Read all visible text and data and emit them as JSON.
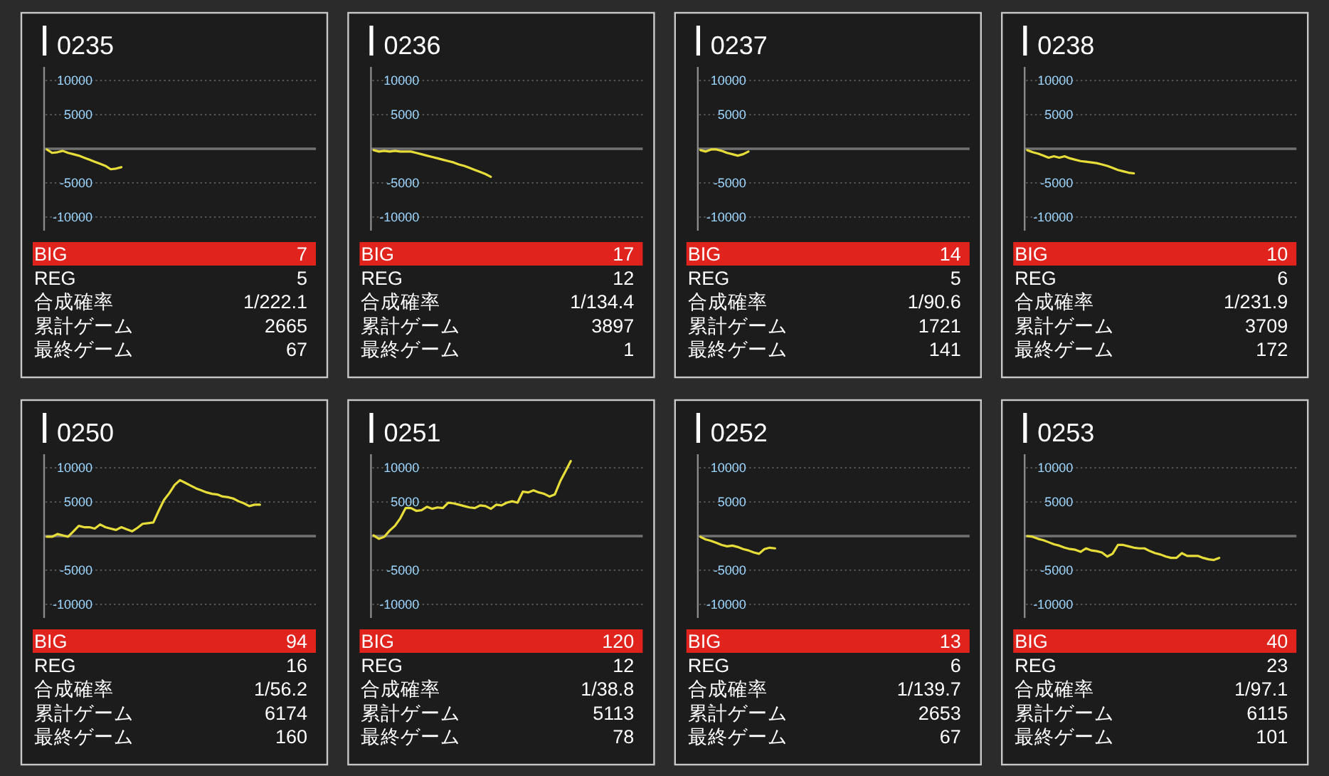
{
  "chart_data": [
    {
      "type": "line",
      "title": "0235",
      "categories": [
        null,
        null,
        null,
        null,
        null,
        null,
        null,
        null,
        null,
        null,
        null,
        null,
        null,
        null,
        null,
        null,
        null,
        null,
        null,
        null,
        null,
        null,
        null,
        null,
        null,
        null,
        null,
        null,
        null,
        null,
        null,
        null,
        null,
        null,
        null,
        null,
        null,
        null,
        null,
        null,
        null,
        null,
        null,
        null,
        null,
        null,
        null,
        null,
        null,
        null,
        null
      ],
      "values": [
        -100,
        -600,
        -500,
        -300,
        -600,
        -800,
        -1000,
        -1300,
        -1600,
        -1900,
        -2200,
        -2500,
        -3000,
        -2900,
        -2700,
        null,
        null,
        null,
        null,
        null,
        null,
        null,
        null,
        null,
        null,
        null,
        null,
        null,
        null,
        null,
        null,
        null,
        null,
        null,
        null,
        null,
        null,
        null,
        null,
        null,
        null,
        null,
        null,
        null,
        null,
        null,
        null,
        null,
        null,
        null,
        null
      ],
      "color": "#e6dc3a",
      "ylim": [
        -12000,
        12000
      ],
      "yticks": [
        -10000,
        -5000,
        5000,
        10000
      ],
      "grid": "y",
      "tick_labels": "y",
      "ref_lines": [
        {
          "axis": "y",
          "value": 0,
          "color": "#727272"
        }
      ],
      "annotations": [
        "BIG",
        "7",
        "REG",
        "5",
        "合成確率",
        "1/222.1",
        "累計ゲーム",
        "2665",
        "最終ゲーム",
        "67"
      ]
    },
    {
      "type": "line",
      "title": "0236",
      "categories": [
        null,
        null,
        null,
        null,
        null,
        null,
        null,
        null,
        null,
        null,
        null,
        null,
        null,
        null,
        null,
        null,
        null,
        null,
        null,
        null,
        null,
        null,
        null,
        null,
        null,
        null,
        null,
        null,
        null,
        null,
        null,
        null,
        null,
        null,
        null,
        null,
        null,
        null,
        null,
        null,
        null,
        null,
        null,
        null,
        null,
        null,
        null,
        null,
        null,
        null,
        null
      ],
      "values": [
        -200,
        -400,
        -300,
        -400,
        -300,
        -400,
        -400,
        -400,
        -600,
        -800,
        -1000,
        -1200,
        -1400,
        -1600,
        -1800,
        -2000,
        -2300,
        -2500,
        -2800,
        -3100,
        -3400,
        -3700,
        -4100,
        null,
        null,
        null,
        null,
        null,
        null,
        null,
        null,
        null,
        null,
        null,
        null,
        null,
        null,
        null,
        null,
        null,
        null,
        null,
        null,
        null,
        null,
        null,
        null,
        null,
        null,
        null,
        null
      ],
      "color": "#e6dc3a",
      "ylim": [
        -12000,
        12000
      ],
      "yticks": [
        -10000,
        -5000,
        5000,
        10000
      ],
      "grid": "y",
      "tick_labels": "y",
      "ref_lines": [
        {
          "axis": "y",
          "value": 0,
          "color": "#727272"
        }
      ],
      "annotations": [
        "BIG",
        "17",
        "REG",
        "12",
        "合成確率",
        "1/134.4",
        "累計ゲーム",
        "3897",
        "最終ゲーム",
        "1"
      ]
    },
    {
      "type": "line",
      "title": "0237",
      "categories": [
        null,
        null,
        null,
        null,
        null,
        null,
        null,
        null,
        null,
        null,
        null,
        null,
        null,
        null,
        null,
        null,
        null,
        null,
        null,
        null,
        null,
        null,
        null,
        null,
        null,
        null,
        null,
        null,
        null,
        null,
        null,
        null,
        null,
        null,
        null,
        null,
        null,
        null,
        null,
        null,
        null,
        null,
        null,
        null,
        null,
        null,
        null,
        null,
        null,
        null,
        null
      ],
      "values": [
        -200,
        -400,
        -100,
        -100,
        -300,
        -600,
        -800,
        -1000,
        -800,
        -400,
        null,
        null,
        null,
        null,
        null,
        null,
        null,
        null,
        null,
        null,
        null,
        null,
        null,
        null,
        null,
        null,
        null,
        null,
        null,
        null,
        null,
        null,
        null,
        null,
        null,
        null,
        null,
        null,
        null,
        null,
        null,
        null,
        null,
        null,
        null,
        null,
        null,
        null,
        null,
        null,
        null
      ],
      "color": "#e6dc3a",
      "ylim": [
        -12000,
        12000
      ],
      "yticks": [
        -10000,
        -5000,
        5000,
        10000
      ],
      "grid": "y",
      "tick_labels": "y",
      "ref_lines": [
        {
          "axis": "y",
          "value": 0,
          "color": "#727272"
        }
      ],
      "annotations": [
        "BIG",
        "14",
        "REG",
        "5",
        "合成確率",
        "1/90.6",
        "累計ゲーム",
        "1721",
        "最終ゲーム",
        "141"
      ]
    },
    {
      "type": "line",
      "title": "0238",
      "categories": [
        null,
        null,
        null,
        null,
        null,
        null,
        null,
        null,
        null,
        null,
        null,
        null,
        null,
        null,
        null,
        null,
        null,
        null,
        null,
        null,
        null,
        null,
        null,
        null,
        null,
        null,
        null,
        null,
        null,
        null,
        null,
        null,
        null,
        null,
        null,
        null,
        null,
        null,
        null,
        null,
        null,
        null,
        null,
        null,
        null,
        null,
        null,
        null,
        null,
        null,
        null
      ],
      "values": [
        -200,
        -500,
        -700,
        -1000,
        -1300,
        -1100,
        -1300,
        -1100,
        -1400,
        -1600,
        -1800,
        -1900,
        -2000,
        -2100,
        -2300,
        -2500,
        -2800,
        -3100,
        -3300,
        -3500,
        -3600,
        null,
        null,
        null,
        null,
        null,
        null,
        null,
        null,
        null,
        null,
        null,
        null,
        null,
        null,
        null,
        null,
        null,
        null,
        null,
        null,
        null,
        null,
        null,
        null,
        null,
        null,
        null,
        null,
        null,
        null
      ],
      "color": "#e6dc3a",
      "ylim": [
        -12000,
        12000
      ],
      "yticks": [
        -10000,
        -5000,
        5000,
        10000
      ],
      "grid": "y",
      "tick_labels": "y",
      "ref_lines": [
        {
          "axis": "y",
          "value": 0,
          "color": "#727272"
        }
      ],
      "annotations": [
        "BIG",
        "10",
        "REG",
        "6",
        "合成確率",
        "1/231.9",
        "累計ゲーム",
        "3709",
        "最終ゲーム",
        "172"
      ]
    },
    {
      "type": "line",
      "title": "0250",
      "categories": [
        null,
        null,
        null,
        null,
        null,
        null,
        null,
        null,
        null,
        null,
        null,
        null,
        null,
        null,
        null,
        null,
        null,
        null,
        null,
        null,
        null,
        null,
        null,
        null,
        null,
        null,
        null,
        null,
        null,
        null,
        null,
        null,
        null,
        null,
        null,
        null,
        null,
        null,
        null,
        null,
        null,
        null,
        null,
        null,
        null,
        null,
        null,
        null,
        null,
        null,
        null
      ],
      "values": [
        -100,
        -100,
        300,
        100,
        -100,
        700,
        1500,
        1300,
        1300,
        1100,
        1700,
        1300,
        1100,
        900,
        1300,
        1000,
        700,
        1200,
        1800,
        1900,
        2000,
        3700,
        5300,
        6300,
        7500,
        8200,
        7800,
        7400,
        7000,
        6700,
        6400,
        6200,
        6100,
        5800,
        5700,
        5500,
        5100,
        4800,
        4400,
        4600,
        4600,
        null,
        null,
        null,
        null,
        null,
        null,
        null,
        null,
        null,
        null
      ],
      "color": "#e6dc3a",
      "ylim": [
        -12000,
        12000
      ],
      "yticks": [
        -10000,
        -5000,
        5000,
        10000
      ],
      "grid": "y",
      "tick_labels": "y",
      "ref_lines": [
        {
          "axis": "y",
          "value": 0,
          "color": "#727272"
        }
      ],
      "annotations": [
        "BIG",
        "94",
        "REG",
        "16",
        "合成確率",
        "1/56.2",
        "累計ゲーム",
        "6174",
        "最終ゲーム",
        "160"
      ]
    },
    {
      "type": "line",
      "title": "0251",
      "categories": [
        null,
        null,
        null,
        null,
        null,
        null,
        null,
        null,
        null,
        null,
        null,
        null,
        null,
        null,
        null,
        null,
        null,
        null,
        null,
        null,
        null,
        null,
        null,
        null,
        null,
        null,
        null,
        null,
        null,
        null,
        null,
        null,
        null,
        null,
        null,
        null,
        null,
        null,
        null,
        null,
        null,
        null,
        null,
        null,
        null,
        null,
        null,
        null,
        null,
        null,
        null
      ],
      "values": [
        100,
        -400,
        -100,
        800,
        1500,
        2600,
        4100,
        4100,
        3700,
        3800,
        4300,
        4000,
        4200,
        4100,
        4900,
        4800,
        4600,
        4400,
        4200,
        4100,
        4500,
        4400,
        4000,
        4600,
        4500,
        4900,
        5100,
        4900,
        6500,
        6400,
        6700,
        6400,
        6200,
        5800,
        6100,
        8000,
        9500,
        11000,
        null,
        null,
        null,
        null,
        null,
        null,
        null,
        null,
        null,
        null,
        null,
        null,
        null
      ],
      "color": "#e6dc3a",
      "ylim": [
        -12000,
        12000
      ],
      "yticks": [
        -10000,
        -5000,
        5000,
        10000
      ],
      "grid": "y",
      "tick_labels": "y",
      "ref_lines": [
        {
          "axis": "y",
          "value": 0,
          "color": "#727272"
        }
      ],
      "annotations": [
        "BIG",
        "120",
        "REG",
        "12",
        "合成確率",
        "1/38.8",
        "累計ゲーム",
        "5113",
        "最終ゲーム",
        "78"
      ]
    },
    {
      "type": "line",
      "title": "0252",
      "categories": [
        null,
        null,
        null,
        null,
        null,
        null,
        null,
        null,
        null,
        null,
        null,
        null,
        null,
        null,
        null,
        null,
        null,
        null,
        null,
        null,
        null,
        null,
        null,
        null,
        null,
        null,
        null,
        null,
        null,
        null,
        null,
        null,
        null,
        null,
        null,
        null,
        null,
        null,
        null,
        null,
        null,
        null,
        null,
        null,
        null,
        null,
        null,
        null,
        null,
        null,
        null
      ],
      "values": [
        -100,
        -500,
        -700,
        -1000,
        -1300,
        -1500,
        -1400,
        -1600,
        -1900,
        -2100,
        -2400,
        -2600,
        -1900,
        -1700,
        -1800,
        null,
        null,
        null,
        null,
        null,
        null,
        null,
        null,
        null,
        null,
        null,
        null,
        null,
        null,
        null,
        null,
        null,
        null,
        null,
        null,
        null,
        null,
        null,
        null,
        null,
        null,
        null,
        null,
        null,
        null,
        null,
        null,
        null,
        null,
        null,
        null
      ],
      "color": "#e6dc3a",
      "ylim": [
        -12000,
        12000
      ],
      "yticks": [
        -10000,
        -5000,
        5000,
        10000
      ],
      "grid": "y",
      "tick_labels": "y",
      "ref_lines": [
        {
          "axis": "y",
          "value": 0,
          "color": "#727272"
        }
      ],
      "annotations": [
        "BIG",
        "13",
        "REG",
        "6",
        "合成確率",
        "1/139.7",
        "累計ゲーム",
        "2653",
        "最終ゲーム",
        "67"
      ]
    },
    {
      "type": "line",
      "title": "0253",
      "categories": [
        null,
        null,
        null,
        null,
        null,
        null,
        null,
        null,
        null,
        null,
        null,
        null,
        null,
        null,
        null,
        null,
        null,
        null,
        null,
        null,
        null,
        null,
        null,
        null,
        null,
        null,
        null,
        null,
        null,
        null,
        null,
        null,
        null,
        null,
        null,
        null,
        null,
        null,
        null,
        null,
        null,
        null,
        null,
        null,
        null,
        null,
        null,
        null,
        null,
        null,
        null
      ],
      "values": [
        0,
        -100,
        -400,
        -600,
        -900,
        -1200,
        -1400,
        -1700,
        -1900,
        -2000,
        -2300,
        -1800,
        -2100,
        -2200,
        -2400,
        -3000,
        -2600,
        -1300,
        -1300,
        -1500,
        -1700,
        -1800,
        -1800,
        -2200,
        -2500,
        -2700,
        -3000,
        -3200,
        -3200,
        -2500,
        -2900,
        -2900,
        -2900,
        -3200,
        -3400,
        -3500,
        -3200,
        null,
        null,
        null,
        null,
        null,
        null,
        null,
        null,
        null,
        null,
        null,
        null,
        null,
        null
      ],
      "color": "#e6dc3a",
      "ylim": [
        -12000,
        12000
      ],
      "yticks": [
        -10000,
        -5000,
        5000,
        10000
      ],
      "grid": "y",
      "tick_labels": "y",
      "ref_lines": [
        {
          "axis": "y",
          "value": 0,
          "color": "#727272"
        }
      ],
      "annotations": [
        "BIG",
        "40",
        "REG",
        "23",
        "合成確率",
        "1/97.1",
        "累計ゲーム",
        "6115",
        "最終ゲーム",
        "101"
      ]
    }
  ]
}
